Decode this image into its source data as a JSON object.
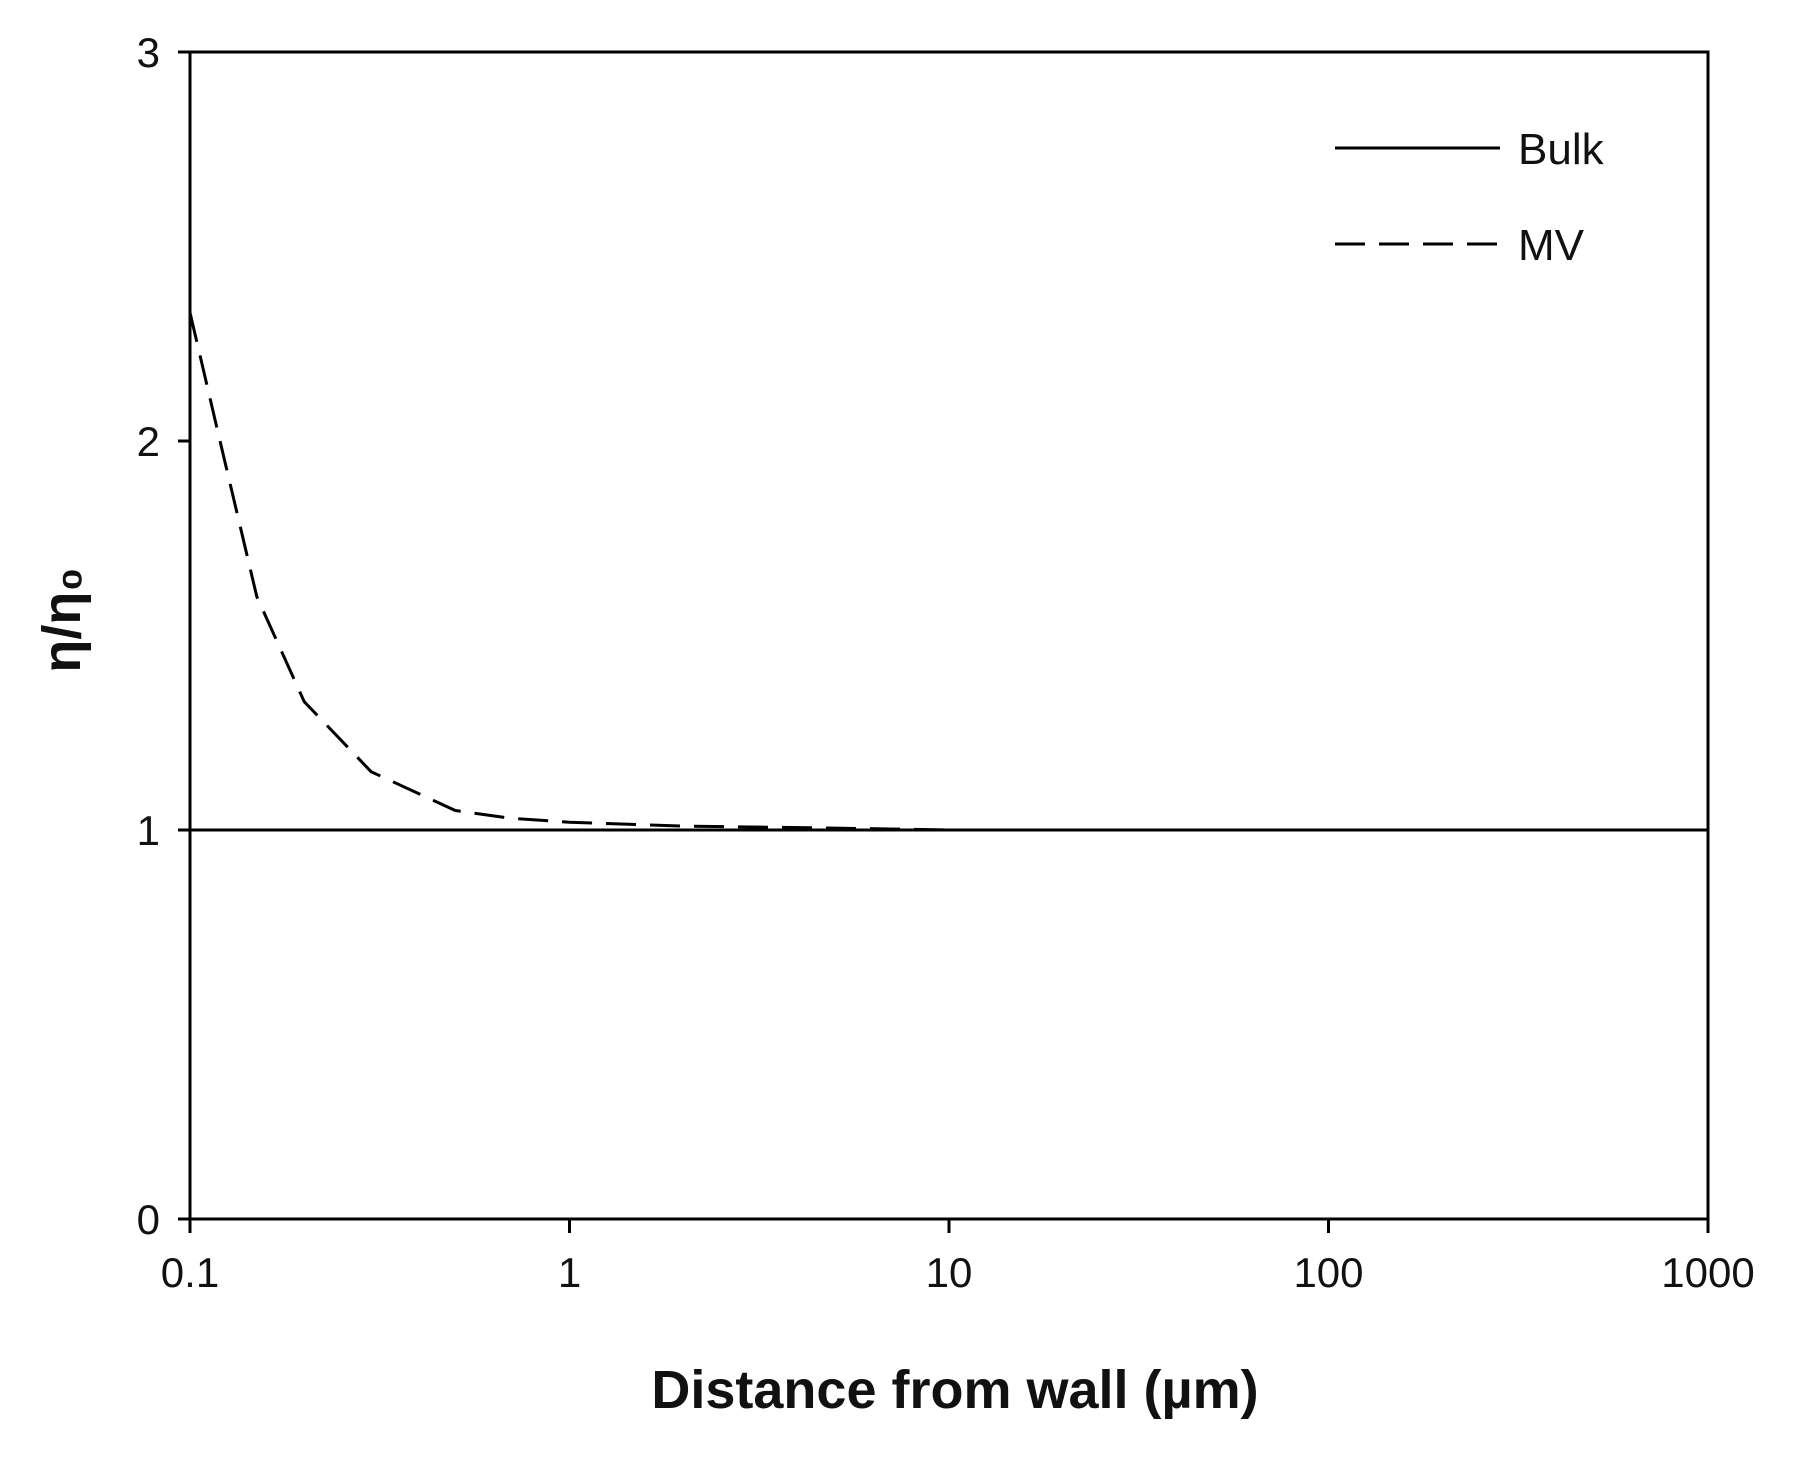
{
  "chart_data": {
    "type": "line",
    "title": "",
    "xlabel": "Distance from wall (µm)",
    "ylabel": "η/η₀",
    "xscale": "log",
    "xlim": [
      0.1,
      1000
    ],
    "ylim": [
      0,
      3
    ],
    "x_ticks": [
      0.1,
      1,
      10,
      100,
      1000
    ],
    "x_tick_labels": [
      "0.1",
      "1",
      "10",
      "100",
      "1000"
    ],
    "y_ticks": [
      0,
      1,
      2,
      3
    ],
    "y_tick_labels": [
      "0",
      "1",
      "2",
      "3"
    ],
    "grid": false,
    "legend_position": "top-right",
    "series": [
      {
        "name": "Bulk",
        "style": "solid",
        "color": "#000000",
        "x": [
          0.1,
          1000
        ],
        "y": [
          1.0,
          1.0
        ]
      },
      {
        "name": "MV",
        "style": "dashed",
        "color": "#000000",
        "x": [
          0.1,
          0.12,
          0.15,
          0.2,
          0.3,
          0.5,
          0.7,
          1,
          2,
          5,
          10,
          100,
          1000
        ],
        "y": [
          2.33,
          2.0,
          1.6,
          1.33,
          1.15,
          1.05,
          1.03,
          1.02,
          1.01,
          1.005,
          1.0,
          1.0,
          1.0
        ]
      }
    ]
  }
}
